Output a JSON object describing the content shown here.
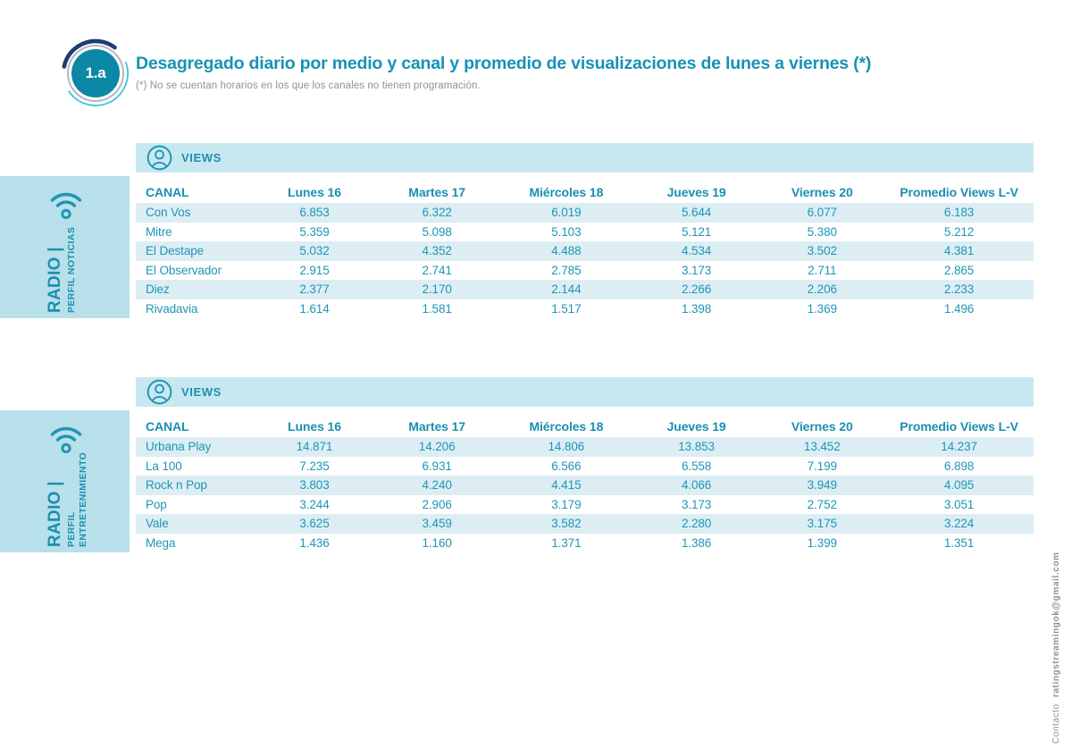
{
  "header": {
    "badge": "1.a",
    "title": "Desagregado diario por medio y canal y promedio de visualizaciones de lunes a viernes (*)",
    "subtitle": "(*) No se cuentan horarios en los que los canales no tienen programación."
  },
  "footer": {
    "contact_label": "Contacto",
    "contact_email": "ratingstreamingok@gmail.com"
  },
  "colors": {
    "accent_teal": "#1792b5",
    "badge_fill": "#0d87a6",
    "badge_arc_navy": "#1e3d72",
    "badge_arc_cyan": "#44c3d9",
    "views_bar_bg": "#c8e8f1",
    "sidebar_bg": "#b8e0ea",
    "row_stripe_bg": "#dceef4",
    "subtitle_gray": "#8e9296"
  },
  "icons": {
    "views_icon": "person-in-circle-icon",
    "sidebar_icon": "radio-waves-icon"
  },
  "sections": [
    {
      "views_label": "VIEWS",
      "sidebar": {
        "medium": "RADIO |",
        "profile_lines": [
          "PERFIL NOTICIAS"
        ]
      },
      "table": {
        "columns": [
          "CANAL",
          "Lunes 16",
          "Martes 17",
          "Miércoles 18",
          "Jueves 19",
          "Viernes 20",
          "Promedio Views L-V"
        ],
        "rows": [
          {
            "canal": "Con Vos",
            "values": [
              "6.853",
              "6.322",
              "6.019",
              "5.644",
              "6.077",
              "6.183"
            ]
          },
          {
            "canal": "Mitre",
            "values": [
              "5.359",
              "5.098",
              "5.103",
              "5.121",
              "5.380",
              "5.212"
            ]
          },
          {
            "canal": "El Destape",
            "values": [
              "5.032",
              "4.352",
              "4.488",
              "4.534",
              "3.502",
              "4.381"
            ]
          },
          {
            "canal": "El Observador",
            "values": [
              "2.915",
              "2.741",
              "2.785",
              "3.173",
              "2.711",
              "2.865"
            ]
          },
          {
            "canal": "Diez",
            "values": [
              "2.377",
              "2.170",
              "2.144",
              "2.266",
              "2.206",
              "2.233"
            ]
          },
          {
            "canal": "Rivadavia",
            "values": [
              "1.614",
              "1.581",
              "1.517",
              "1.398",
              "1.369",
              "1.496"
            ]
          }
        ]
      }
    },
    {
      "views_label": "VIEWS",
      "sidebar": {
        "medium": "RADIO |",
        "profile_lines": [
          "PERFIL",
          "ENTRETENIMIENTO"
        ]
      },
      "table": {
        "columns": [
          "CANAL",
          "Lunes 16",
          "Martes 17",
          "Miércoles 18",
          "Jueves 19",
          "Viernes 20",
          "Promedio Views L-V"
        ],
        "rows": [
          {
            "canal": "Urbana Play",
            "values": [
              "14.871",
              "14.206",
              "14.806",
              "13.853",
              "13.452",
              "14.237"
            ]
          },
          {
            "canal": "La 100",
            "values": [
              "7.235",
              "6.931",
              "6.566",
              "6.558",
              "7.199",
              "6.898"
            ]
          },
          {
            "canal": "Rock n Pop",
            "values": [
              "3.803",
              "4.240",
              "4.415",
              "4.066",
              "3.949",
              "4.095"
            ]
          },
          {
            "canal": "Pop",
            "values": [
              "3.244",
              "2.906",
              "3.179",
              "3.173",
              "2.752",
              "3.051"
            ]
          },
          {
            "canal": "Vale",
            "values": [
              "3.625",
              "3.459",
              "3.582",
              "2.280",
              "3.175",
              "3.224"
            ]
          },
          {
            "canal": "Mega",
            "values": [
              "1.436",
              "1.160",
              "1.371",
              "1.386",
              "1.399",
              "1.351"
            ]
          }
        ]
      }
    }
  ]
}
